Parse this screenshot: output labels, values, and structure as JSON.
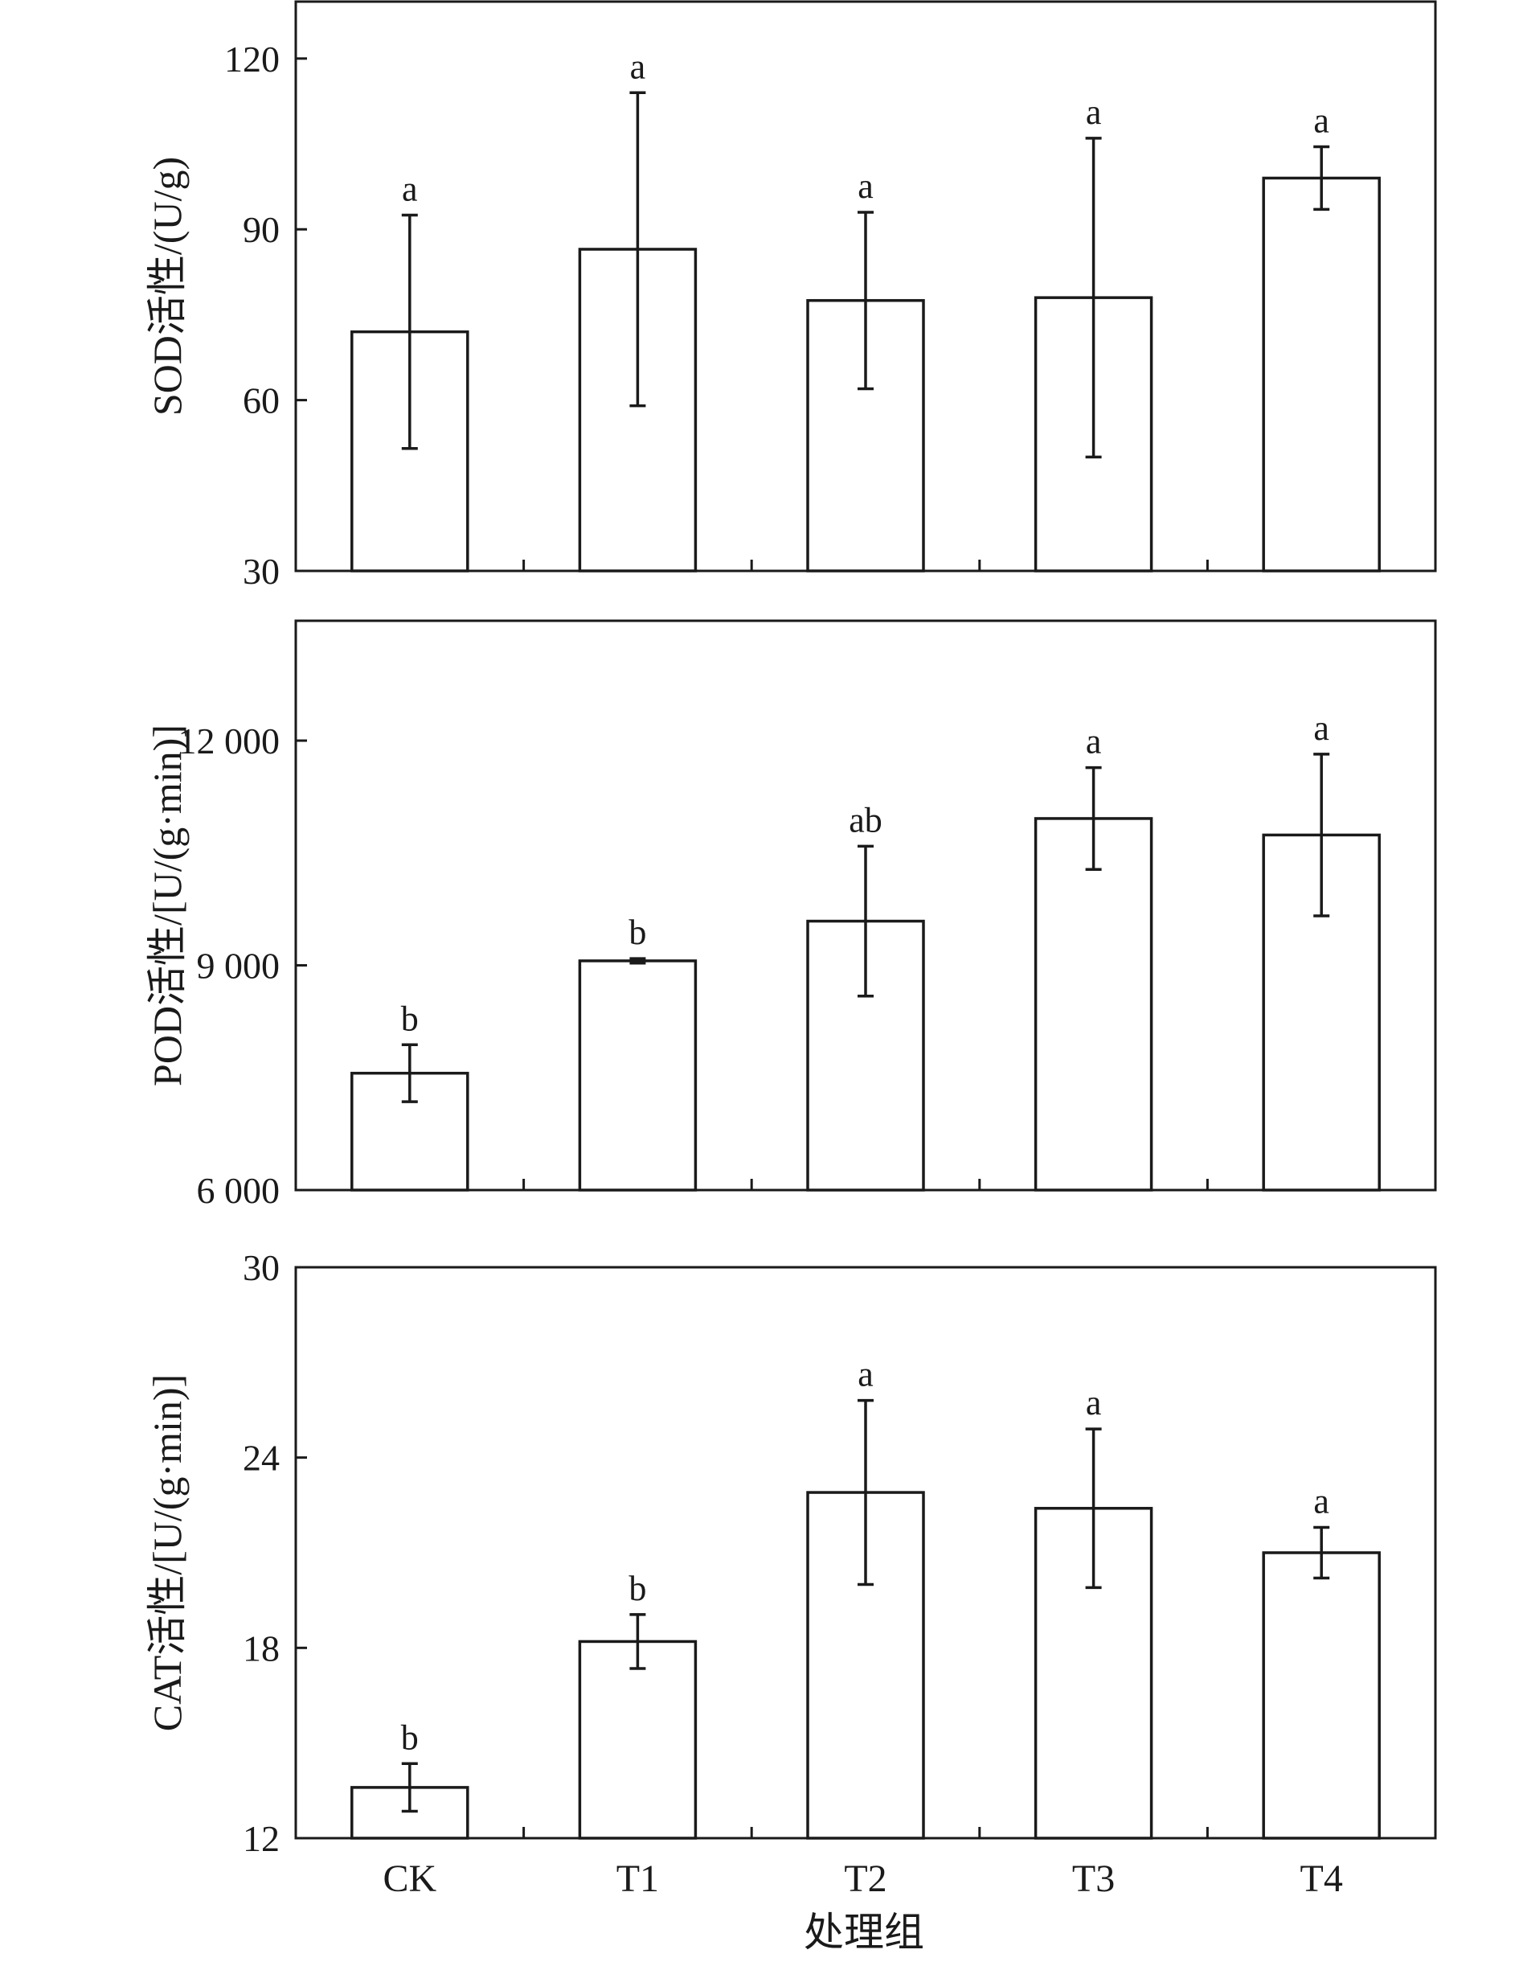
{
  "chart_data": [
    {
      "type": "bar",
      "categories": [
        "CK",
        "T1",
        "T2",
        "T3",
        "T4"
      ],
      "values": [
        72,
        86.5,
        77.5,
        78,
        99
      ],
      "errors": [
        20.5,
        27.5,
        15.5,
        28,
        5.5
      ],
      "significance": [
        "a",
        "a",
        "a",
        "a",
        "a"
      ],
      "ylabel": "SOD活性/(U/g)",
      "xlabel": "",
      "ylim": [
        30,
        130
      ],
      "yticks": [
        30,
        60,
        90,
        120
      ],
      "ytick_labels": [
        "30",
        "60",
        "90",
        "120"
      ],
      "show_category_labels": false
    },
    {
      "type": "bar",
      "categories": [
        "CK",
        "T1",
        "T2",
        "T3",
        "T4"
      ],
      "values": [
        7560,
        9060,
        9590,
        10960,
        10740
      ],
      "errors": [
        380,
        30,
        1000,
        680,
        1080
      ],
      "significance": [
        "b",
        "b",
        "ab",
        "a",
        "a"
      ],
      "ylabel": "POD活性/[U/(g·min)]",
      "xlabel": "",
      "ylim": [
        6000,
        13600
      ],
      "yticks": [
        6000,
        9000,
        12000
      ],
      "ytick_labels": [
        "6 000",
        "9 000",
        "12 000"
      ],
      "show_category_labels": false
    },
    {
      "type": "bar",
      "categories": [
        "CK",
        "T1",
        "T2",
        "T3",
        "T4"
      ],
      "values": [
        13.6,
        18.2,
        22.9,
        22.4,
        21.0
      ],
      "errors": [
        0.75,
        0.85,
        2.9,
        2.5,
        0.8
      ],
      "significance": [
        "b",
        "b",
        "a",
        "a",
        "a"
      ],
      "ylabel": "CAT活性/[U/(g·min)]",
      "xlabel": "处理组",
      "ylim": [
        12,
        30
      ],
      "yticks": [
        12,
        18,
        24,
        30
      ],
      "ytick_labels": [
        "12",
        "18",
        "24",
        "30"
      ],
      "show_category_labels": true
    }
  ],
  "colors": {
    "bar_fill": "#ffffff",
    "stroke": "#1a1a1a"
  }
}
